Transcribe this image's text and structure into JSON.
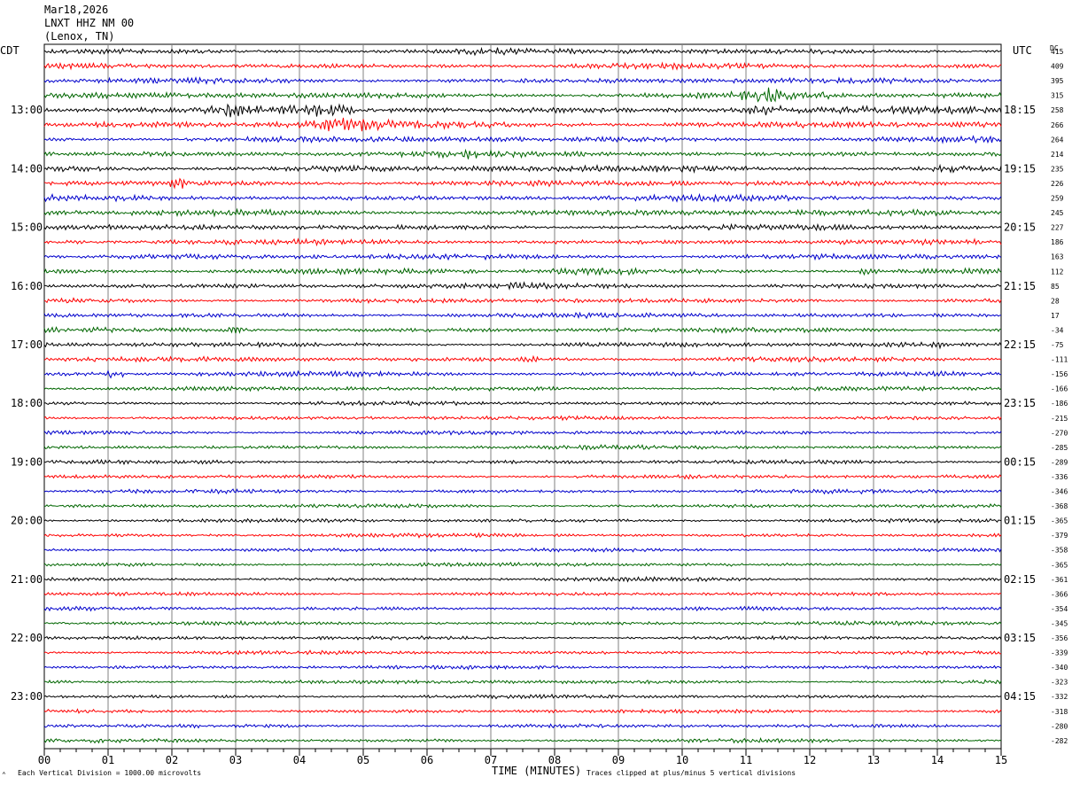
{
  "header": {
    "date": "Mar18,2026",
    "station": "LNXT HHZ NM 00",
    "location": "(Lenox, TN)"
  },
  "left_tz": "CDT",
  "right_tz": "UTC",
  "dc_header": "DC",
  "footer": {
    "scale_note": "Each Vertical Division = 1000.00 microvolts",
    "clip_note": "Traces clipped at plus/minus 5 vertical divisions",
    "marker": "⌃"
  },
  "colors": {
    "trace_cycle": [
      "#000000",
      "#ff0000",
      "#0000cc",
      "#006600"
    ],
    "grid": "#000000"
  },
  "chart_data": {
    "type": "line",
    "title": "LNXT HHZ NM 00 (Lenox, TN) Mar18,2026",
    "xlabel": "TIME (MINUTES)",
    "xlim": [
      0,
      15
    ],
    "x_ticks": [
      "00",
      "01",
      "02",
      "03",
      "04",
      "05",
      "06",
      "07",
      "08",
      "09",
      "10",
      "11",
      "12",
      "13",
      "14",
      "15"
    ],
    "left_hour_labels": [
      "13:00",
      "14:00",
      "15:00",
      "16:00",
      "17:00",
      "18:00",
      "19:00",
      "20:00",
      "21:00",
      "22:00",
      "23:00"
    ],
    "right_hour_labels": [
      "18:15",
      "19:15",
      "20:15",
      "21:15",
      "22:15",
      "23:15",
      "00:15",
      "01:15",
      "02:15",
      "03:15",
      "04:15"
    ],
    "rows": 48,
    "dc_offsets": [
      415,
      409,
      395,
      315,
      258,
      266,
      264,
      214,
      235,
      226,
      259,
      245,
      227,
      186,
      163,
      112,
      85,
      28,
      17,
      -34,
      -75,
      -111,
      -156,
      -166,
      -186,
      -215,
      -270,
      -285,
      -289,
      -336,
      -346,
      -368,
      -365,
      -379,
      -358,
      -365,
      -361,
      -366,
      -354,
      -345,
      -356,
      -339,
      -340,
      -323,
      -332,
      -318,
      -280,
      -282
    ],
    "row_amplitude_units": [
      2,
      2,
      2,
      2.2,
      2.6,
      2.6,
      2.2,
      2.2,
      2.4,
      2.2,
      2.2,
      2.2,
      2,
      2,
      2,
      2,
      2,
      1.8,
      1.8,
      1.8,
      1.8,
      1.8,
      1.8,
      1.6,
      1.5,
      1.5,
      1.5,
      1.5,
      1.5,
      1.5,
      1.5,
      1.4,
      1.4,
      1.4,
      1.4,
      1.4,
      1.4,
      1.4,
      1.4,
      1.4,
      1.4,
      1.4,
      1.4,
      1.4,
      1.4,
      1.4,
      1.4,
      1.4
    ],
    "bursts": [
      {
        "row": 0,
        "minute": 7.0,
        "width": 0.5,
        "amp": 1.5
      },
      {
        "row": 3,
        "minute": 11.3,
        "width": 0.5,
        "amp": 4
      },
      {
        "row": 3,
        "minute": 12.2,
        "width": 0.15,
        "amp": 3
      },
      {
        "row": 4,
        "minute": 2.9,
        "width": 0.3,
        "amp": 3
      },
      {
        "row": 4,
        "minute": 4.4,
        "width": 0.6,
        "amp": 2.5
      },
      {
        "row": 4,
        "minute": 11.3,
        "width": 0.6,
        "amp": 2.5
      },
      {
        "row": 5,
        "minute": 4.7,
        "width": 0.9,
        "amp": 3.5
      },
      {
        "row": 7,
        "minute": 6.6,
        "width": 0.3,
        "amp": 2
      },
      {
        "row": 8,
        "minute": 14.2,
        "width": 0.4,
        "amp": 2
      },
      {
        "row": 9,
        "minute": 2.1,
        "width": 0.2,
        "amp": 2.5
      },
      {
        "row": 15,
        "minute": 8.7,
        "width": 1.0,
        "amp": 2
      },
      {
        "row": 15,
        "minute": 12.9,
        "width": 0.2,
        "amp": 2
      },
      {
        "row": 16,
        "minute": 7.4,
        "width": 0.2,
        "amp": 2
      },
      {
        "row": 19,
        "minute": 3.0,
        "width": 0.2,
        "amp": 2
      },
      {
        "row": 21,
        "minute": 7.6,
        "width": 0.2,
        "amp": 2.5
      },
      {
        "row": 22,
        "minute": 1.1,
        "width": 0.2,
        "amp": 2.5
      },
      {
        "row": 20,
        "minute": 14.0,
        "width": 0.1,
        "amp": 2.5
      }
    ]
  }
}
